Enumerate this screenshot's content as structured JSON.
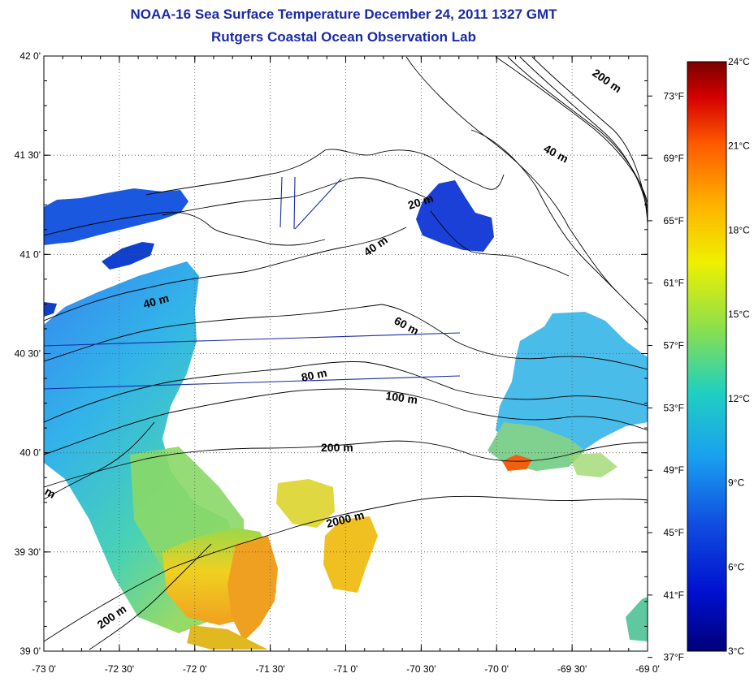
{
  "header": {
    "title": "NOAA-16 Sea Surface Temperature December 24, 2011 1327 GMT",
    "subtitle": "Rutgers Coastal Ocean Observation Lab"
  },
  "map": {
    "lat_ticks": [
      "42 0'",
      "41 30'",
      "41 0'",
      "40 30'",
      "40 0'",
      "39 30'",
      "39 0'"
    ],
    "lon_ticks": [
      "-73 0'",
      "-72 30'",
      "-72 0'",
      "-71 30'",
      "-71 0'",
      "-70 30'",
      "-70 0'",
      "-69 30'",
      "-69 0'"
    ],
    "f_ticks": [
      "73°F",
      "69°F",
      "65°F",
      "61°F",
      "57°F",
      "53°F",
      "49°F",
      "45°F",
      "41°F",
      "37°F"
    ],
    "contour_labels": [
      "200 m",
      "40 m",
      "20 m",
      "40 m",
      "40 m",
      "60 m",
      "80 m",
      "100 m",
      "200 m",
      "2000 m",
      "200 m",
      "m"
    ],
    "lat_range": [
      39.0,
      42.0
    ],
    "lon_range": [
      -73.0,
      -69.0
    ],
    "grid": "dotted"
  },
  "colorbar": {
    "labels": [
      "24°C",
      "21°C",
      "18°C",
      "15°C",
      "12°C",
      "9°C",
      "6°C",
      "3°C"
    ],
    "range_c": [
      3,
      24
    ],
    "colors": [
      "#7a0000",
      "#d40000",
      "#ff5a00",
      "#ffb000",
      "#f0f000",
      "#8ee04a",
      "#20d0c0",
      "#1aa0f0",
      "#1050e0",
      "#0010d0",
      "#000078"
    ]
  }
}
